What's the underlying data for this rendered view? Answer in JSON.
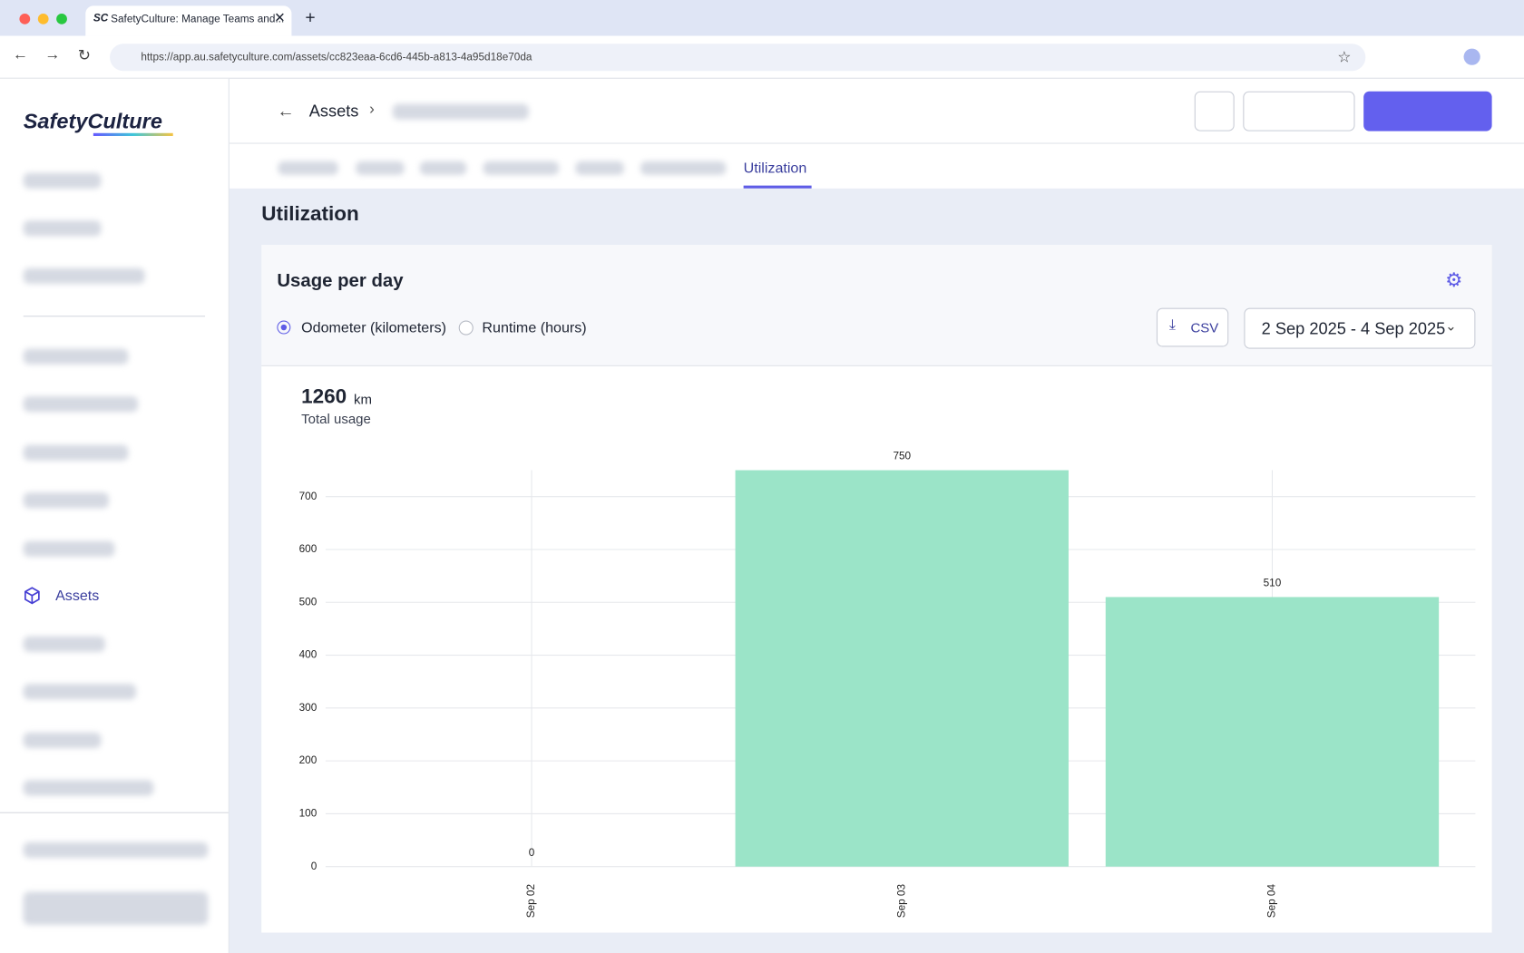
{
  "browser": {
    "tab_title": "SafetyCulture: Manage Teams and...",
    "url": "https://app.au.safetyculture.com/assets/cc823eaa-6cd6-445b-a813-4a95d18e70da"
  },
  "sidebar": {
    "logo": "SafetyCulture",
    "active_item": "Assets"
  },
  "header": {
    "breadcrumb": "Assets",
    "active_tab": "Utilization"
  },
  "page": {
    "title": "Utilization",
    "card_title": "Usage per day",
    "options": [
      "Odometer (kilometers)",
      "Runtime (hours)"
    ],
    "export_button": "CSV",
    "date_range": "2 Sep 2025 - 4 Sep 2025",
    "total": "1260",
    "total_unit": "km",
    "total_label": "Total usage"
  },
  "chart_data": {
    "type": "bar",
    "categories": [
      "Sep 02",
      "Sep 03",
      "Sep 04"
    ],
    "values": [
      0,
      750,
      510
    ],
    "color": "#9be4c8",
    "ylim": [
      0,
      750
    ],
    "yticks": [
      0,
      100,
      200,
      300,
      400,
      500,
      600,
      700
    ],
    "grid": true
  }
}
